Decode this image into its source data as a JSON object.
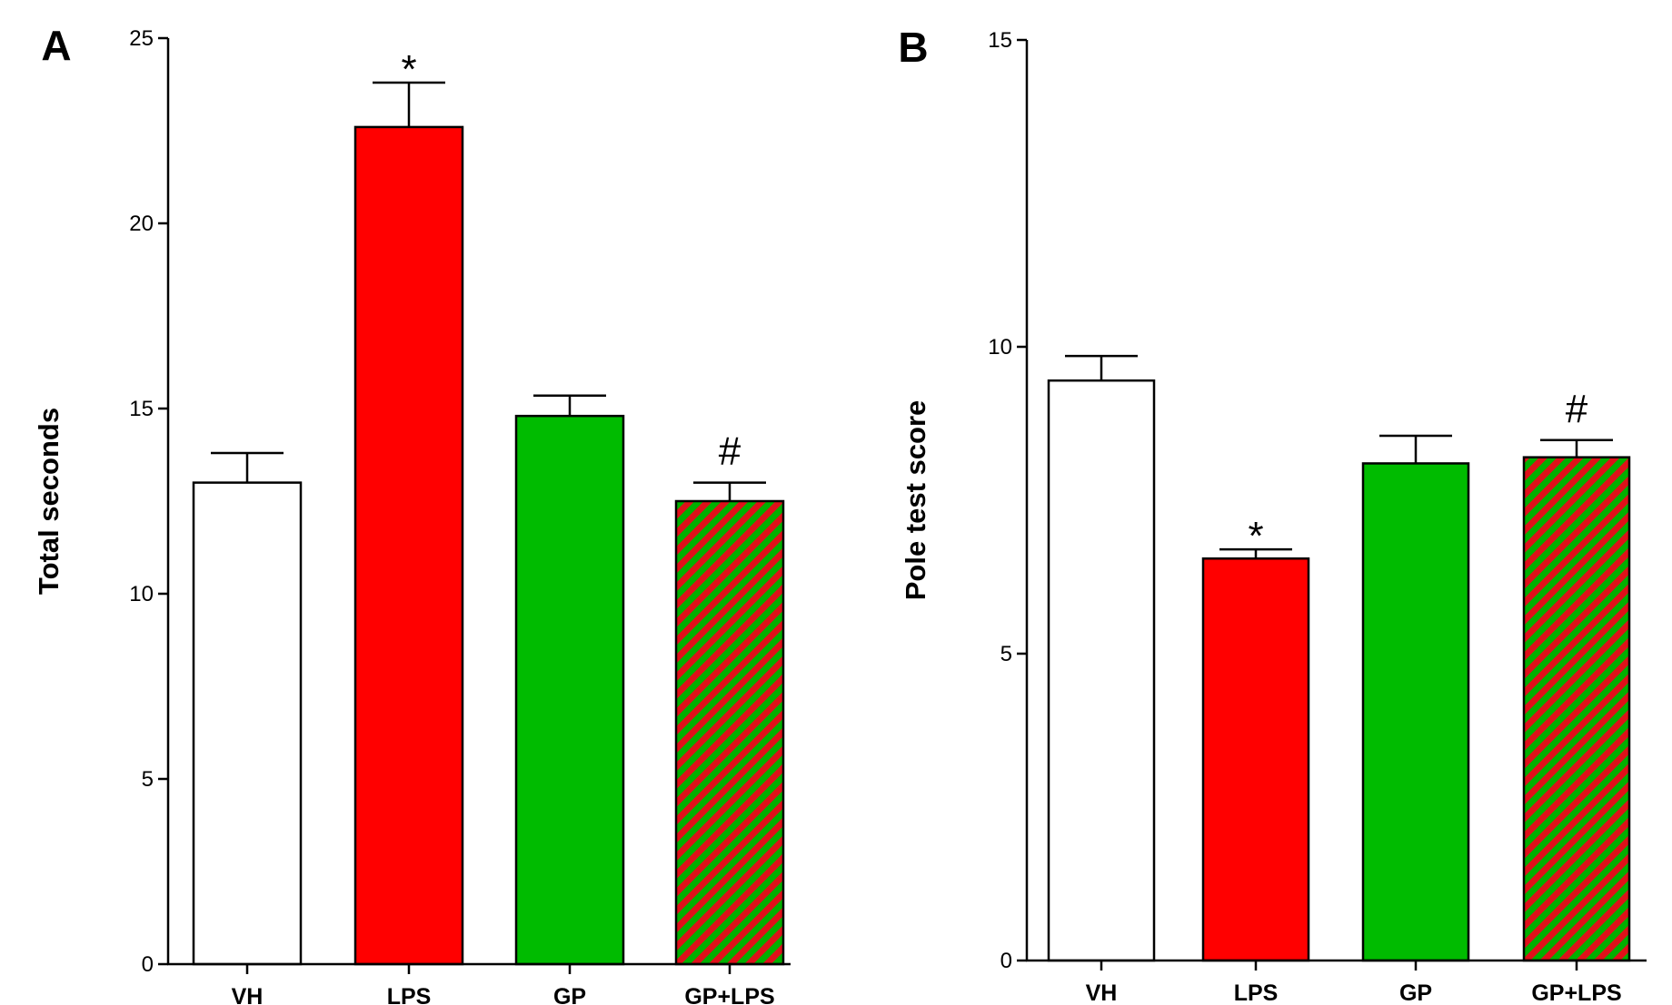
{
  "colors": {
    "white": "#ffffff",
    "red": "#ff0000",
    "green": "#00bb00",
    "stripe_red": "#e0101a",
    "stripe_green": "#00b000"
  },
  "chart_data": [
    {
      "type": "bar",
      "panel_label": "A",
      "title": "",
      "xlabel": "",
      "ylabel": "Total seconds",
      "ylim": [
        0,
        25
      ],
      "yticks": [
        0,
        5,
        10,
        15,
        20,
        25
      ],
      "categories": [
        "VH",
        "LPS",
        "GP",
        "GP+LPS"
      ],
      "values": [
        13.0,
        22.6,
        14.8,
        12.5
      ],
      "errors": [
        0.8,
        1.2,
        0.55,
        0.5
      ],
      "fills": [
        "white",
        "red",
        "green",
        "hatched"
      ],
      "annotations": [
        "",
        "*",
        "",
        "#"
      ]
    },
    {
      "type": "bar",
      "panel_label": "B",
      "title": "",
      "xlabel": "",
      "ylabel": "Pole test score",
      "ylim": [
        0,
        15
      ],
      "yticks": [
        0,
        5,
        10,
        15
      ],
      "categories": [
        "VH",
        "LPS",
        "GP",
        "GP+LPS"
      ],
      "values": [
        9.45,
        6.55,
        8.1,
        8.2
      ],
      "errors": [
        0.4,
        0.15,
        0.45,
        0.28
      ],
      "fills": [
        "white",
        "red",
        "green",
        "hatched"
      ],
      "annotations": [
        "",
        "*",
        "",
        "#"
      ]
    }
  ]
}
